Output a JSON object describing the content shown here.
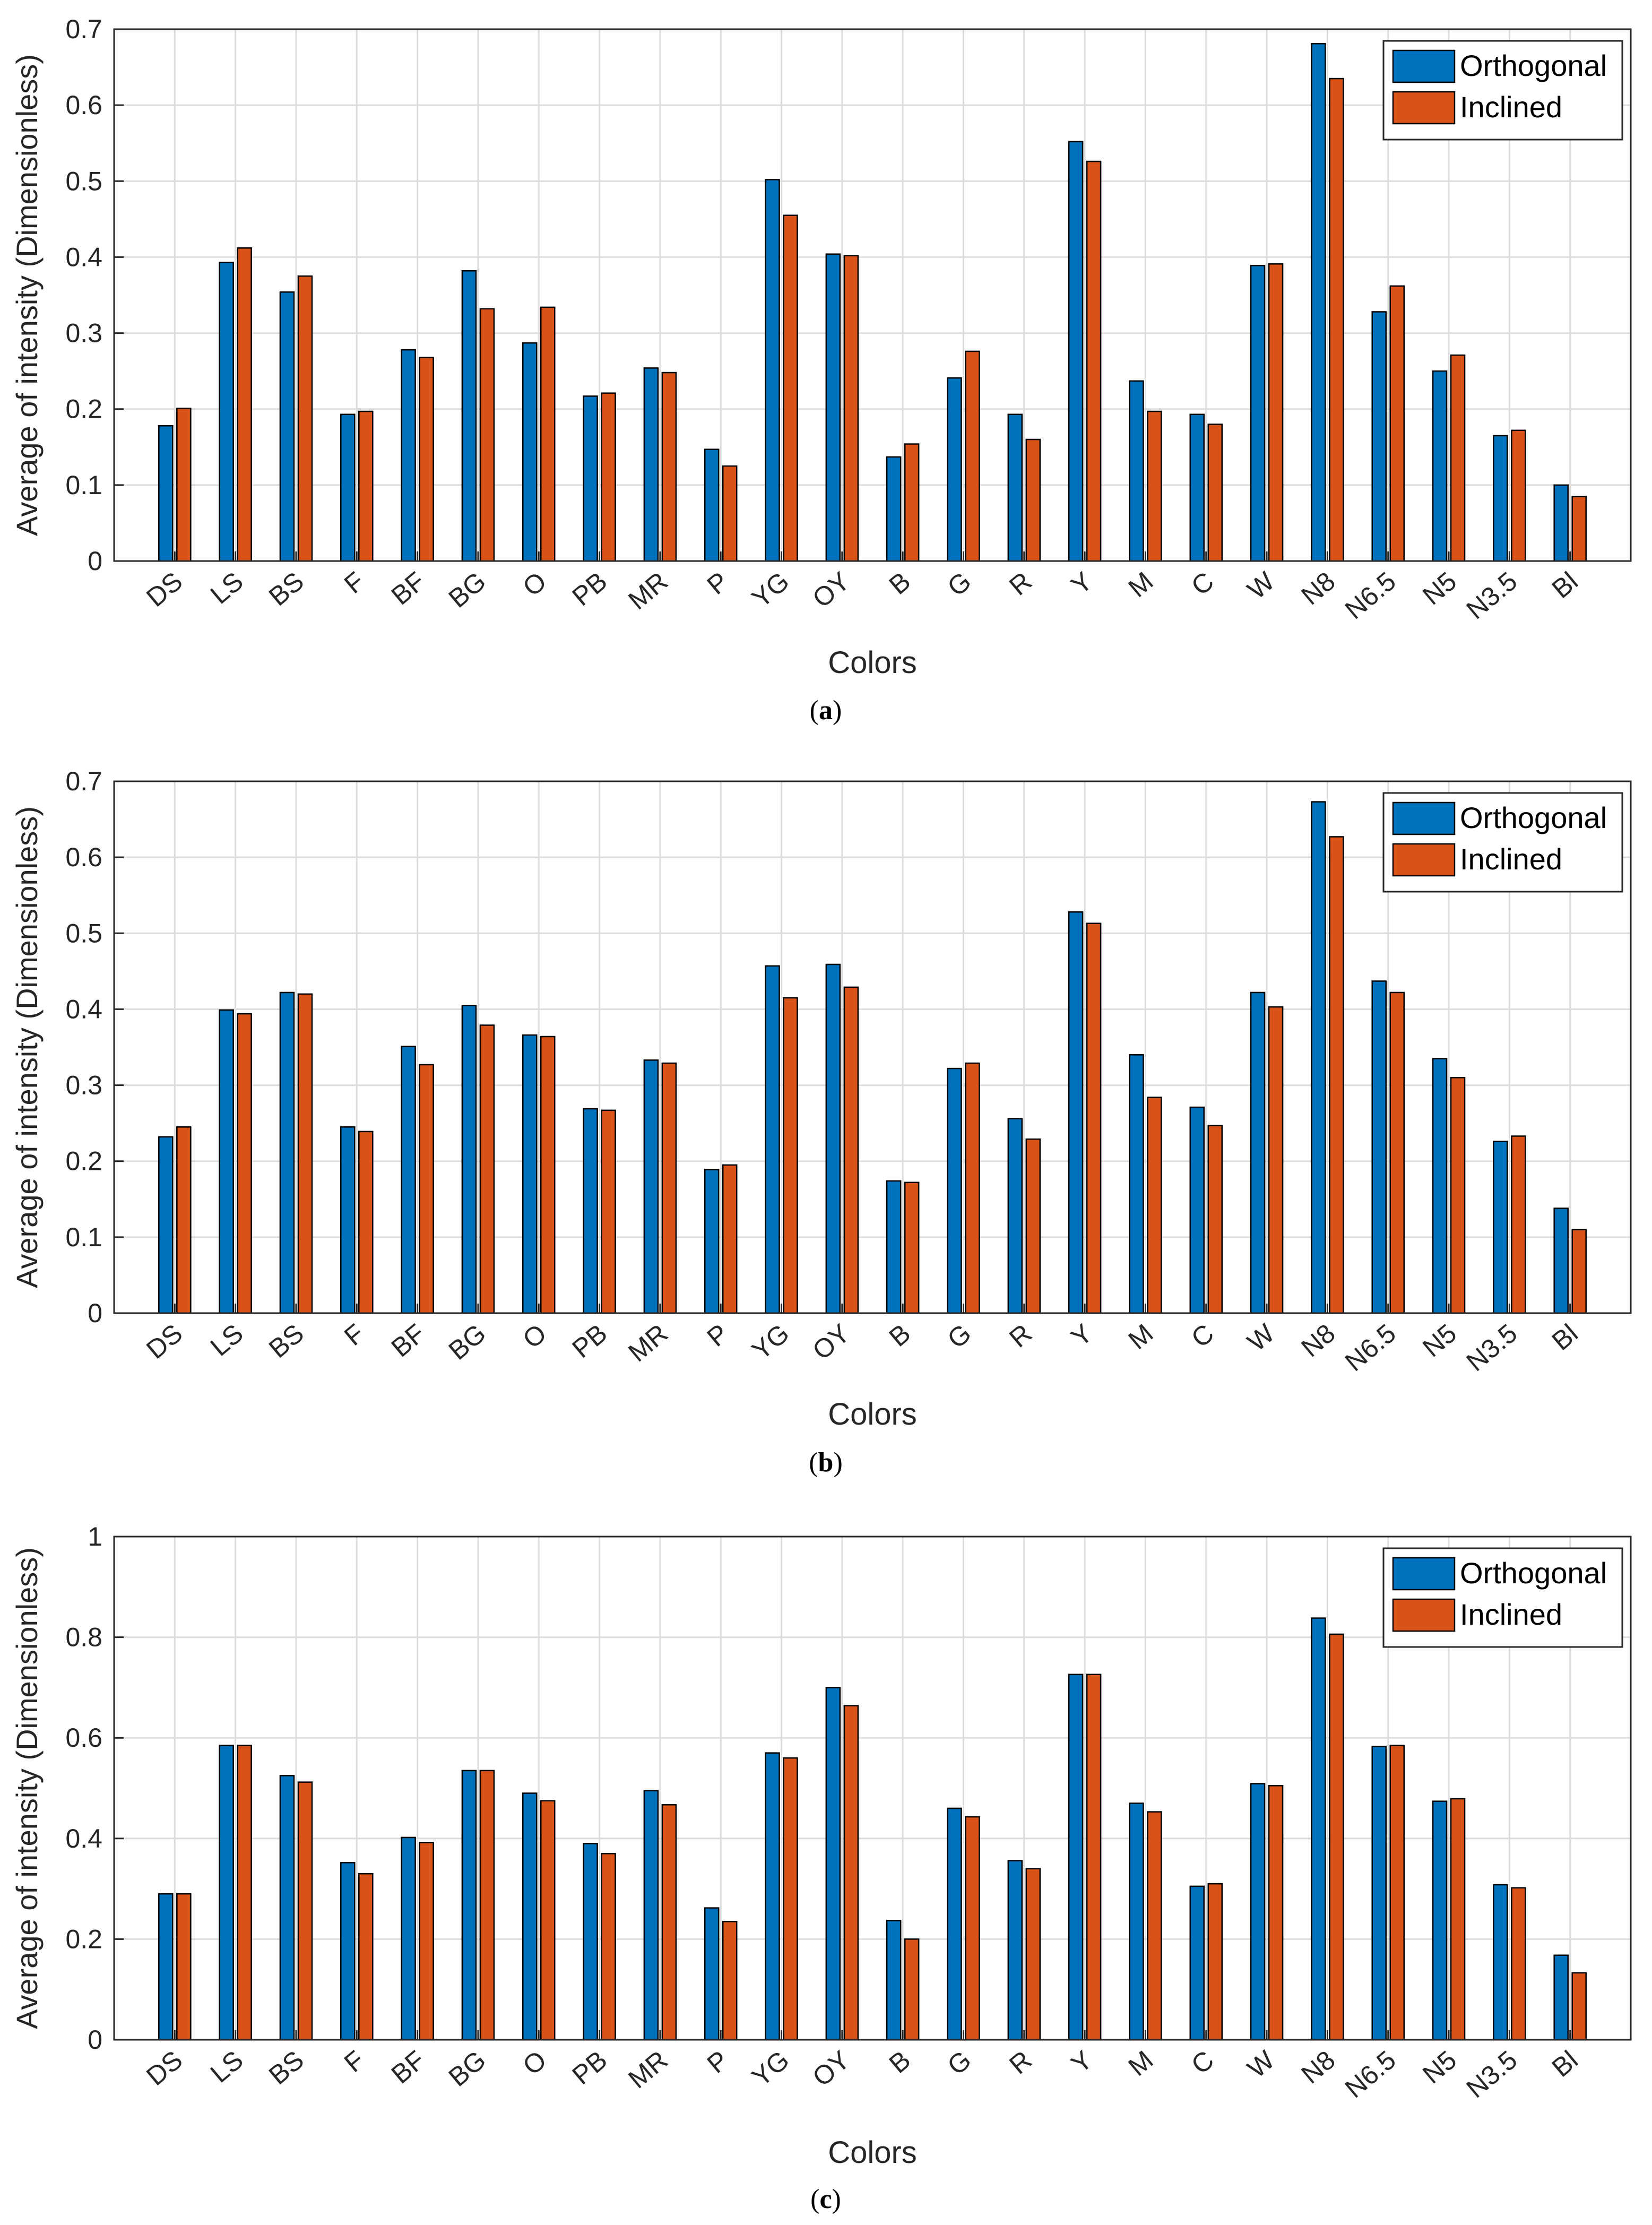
{
  "colors": {
    "orthogonal": "#0072BD",
    "inclined": "#D95319",
    "grid": "#dcdcdc",
    "axis": "#262626"
  },
  "chart_data": [
    {
      "type": "bar",
      "panel_label": "a",
      "xlabel": "Colors",
      "ylabel": "Average of intensity (Dimensionless)",
      "ylim": [
        0,
        0.7
      ],
      "yticks": [
        0,
        0.1,
        0.2,
        0.3,
        0.4,
        0.5,
        0.6,
        0.7
      ],
      "ytick_labels": [
        "0",
        "0.1",
        "0.2",
        "0.3",
        "0.4",
        "0.5",
        "0.6",
        "0.7"
      ],
      "categories": [
        "DS",
        "LS",
        "BS",
        "F",
        "BF",
        "BG",
        "O",
        "PB",
        "MR",
        "P",
        "YG",
        "OY",
        "B",
        "G",
        "R",
        "Y",
        "M",
        "C",
        "W",
        "N8",
        "N6.5",
        "N5",
        "N3.5",
        "Bl"
      ],
      "legend_position": "top-right",
      "grid": true,
      "series": [
        {
          "name": "Orthogonal",
          "values": [
            0.178,
            0.393,
            0.354,
            0.193,
            0.278,
            0.382,
            0.287,
            0.217,
            0.254,
            0.147,
            0.502,
            0.404,
            0.137,
            0.241,
            0.193,
            0.552,
            0.237,
            0.193,
            0.389,
            0.681,
            0.328,
            0.25,
            0.165,
            0.1
          ]
        },
        {
          "name": "Inclined",
          "values": [
            0.201,
            0.412,
            0.375,
            0.197,
            0.268,
            0.332,
            0.334,
            0.221,
            0.248,
            0.125,
            0.455,
            0.402,
            0.154,
            0.276,
            0.16,
            0.526,
            0.197,
            0.18,
            0.391,
            0.635,
            0.362,
            0.271,
            0.172,
            0.085
          ]
        }
      ]
    },
    {
      "type": "bar",
      "panel_label": "b",
      "xlabel": "Colors",
      "ylabel": "Average of intensity (Dimensionless)",
      "ylim": [
        0,
        0.7
      ],
      "yticks": [
        0,
        0.1,
        0.2,
        0.3,
        0.4,
        0.5,
        0.6,
        0.7
      ],
      "ytick_labels": [
        "0",
        "0.1",
        "0.2",
        "0.3",
        "0.4",
        "0.5",
        "0.6",
        "0.7"
      ],
      "categories": [
        "DS",
        "LS",
        "BS",
        "F",
        "BF",
        "BG",
        "O",
        "PB",
        "MR",
        "P",
        "YG",
        "OY",
        "B",
        "G",
        "R",
        "Y",
        "M",
        "C",
        "W",
        "N8",
        "N6.5",
        "N5",
        "N3.5",
        "Bl"
      ],
      "legend_position": "top-right",
      "grid": true,
      "series": [
        {
          "name": "Orthogonal",
          "values": [
            0.232,
            0.399,
            0.422,
            0.245,
            0.351,
            0.405,
            0.366,
            0.269,
            0.333,
            0.189,
            0.457,
            0.459,
            0.174,
            0.322,
            0.256,
            0.528,
            0.34,
            0.271,
            0.422,
            0.673,
            0.437,
            0.335,
            0.226,
            0.138
          ]
        },
        {
          "name": "Inclined",
          "values": [
            0.245,
            0.394,
            0.42,
            0.239,
            0.327,
            0.379,
            0.364,
            0.267,
            0.329,
            0.195,
            0.415,
            0.429,
            0.172,
            0.329,
            0.229,
            0.513,
            0.284,
            0.247,
            0.403,
            0.627,
            0.422,
            0.31,
            0.233,
            0.11
          ]
        }
      ]
    },
    {
      "type": "bar",
      "panel_label": "c",
      "xlabel": "Colors",
      "ylabel": "Average of intensity (Dimensionless)",
      "ylim": [
        0,
        1
      ],
      "yticks": [
        0,
        0.2,
        0.4,
        0.6,
        0.8,
        1
      ],
      "ytick_labels": [
        "0",
        "0.2",
        "0.4",
        "0.6",
        "0.8",
        "1"
      ],
      "categories": [
        "DS",
        "LS",
        "BS",
        "F",
        "BF",
        "BG",
        "O",
        "PB",
        "MR",
        "P",
        "YG",
        "OY",
        "B",
        "G",
        "R",
        "Y",
        "M",
        "C",
        "W",
        "N8",
        "N6.5",
        "N5",
        "N3.5",
        "Bl"
      ],
      "legend_position": "top-right",
      "grid": true,
      "series": [
        {
          "name": "Orthogonal",
          "values": [
            0.29,
            0.585,
            0.525,
            0.352,
            0.402,
            0.535,
            0.49,
            0.39,
            0.495,
            0.262,
            0.57,
            0.7,
            0.237,
            0.46,
            0.356,
            0.726,
            0.47,
            0.305,
            0.509,
            0.838,
            0.583,
            0.474,
            0.308,
            0.168
          ]
        },
        {
          "name": "Inclined",
          "values": [
            0.29,
            0.585,
            0.512,
            0.33,
            0.392,
            0.535,
            0.475,
            0.37,
            0.467,
            0.235,
            0.56,
            0.664,
            0.2,
            0.443,
            0.34,
            0.726,
            0.453,
            0.31,
            0.505,
            0.806,
            0.585,
            0.479,
            0.302,
            0.133
          ]
        }
      ]
    }
  ]
}
